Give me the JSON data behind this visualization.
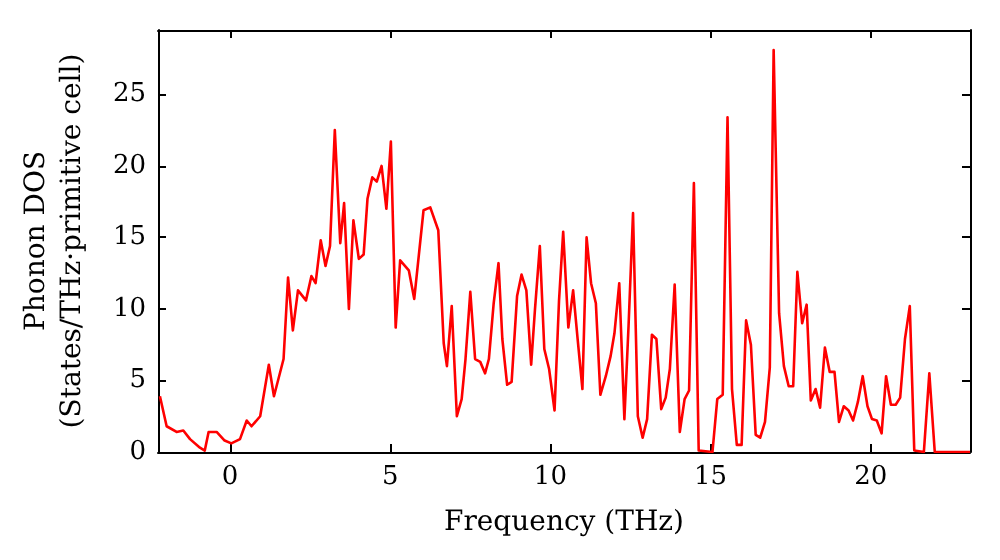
{
  "chart_data": {
    "type": "line",
    "xlabel": "Frequency (THz)",
    "ylabel": "Phonon DOS\n(States/THz·primitive cell)",
    "xlim": [
      -2.25,
      23.1
    ],
    "xticks": [
      0,
      5,
      10,
      15,
      20
    ],
    "ylim": [
      0,
      29.5
    ],
    "yticks": [
      0,
      5,
      10,
      15,
      20,
      25
    ],
    "grid": false,
    "marker": "none",
    "line_style": "solid",
    "series": [
      {
        "color": "#ff0000",
        "x": [
          -2.19,
          -1.98,
          -1.67,
          -1.46,
          -1.25,
          -0.94,
          -0.79,
          -0.67,
          -0.42,
          -0.17,
          0.04,
          0.31,
          0.52,
          0.67,
          0.94,
          1.21,
          1.37,
          1.67,
          1.81,
          1.96,
          2.12,
          2.37,
          2.54,
          2.67,
          2.83,
          2.98,
          3.12,
          3.27,
          3.44,
          3.56,
          3.71,
          3.85,
          4.02,
          4.17,
          4.29,
          4.44,
          4.58,
          4.73,
          4.88,
          5.02,
          5.17,
          5.31,
          5.58,
          5.75,
          6.04,
          6.25,
          6.5,
          6.67,
          6.77,
          6.92,
          7.08,
          7.23,
          7.35,
          7.5,
          7.65,
          7.81,
          7.96,
          8.08,
          8.23,
          8.38,
          8.5,
          8.65,
          8.79,
          8.96,
          9.1,
          9.25,
          9.4,
          9.52,
          9.67,
          9.81,
          9.96,
          10.13,
          10.27,
          10.4,
          10.56,
          10.71,
          10.85,
          11.0,
          11.13,
          11.27,
          11.42,
          11.56,
          11.73,
          11.88,
          12.0,
          12.15,
          12.31,
          12.44,
          12.58,
          12.73,
          12.88,
          13.02,
          13.17,
          13.31,
          13.46,
          13.6,
          13.73,
          13.88,
          14.04,
          14.19,
          14.33,
          14.48,
          14.63,
          15.06,
          15.21,
          15.38,
          15.53,
          15.67,
          15.82,
          15.97,
          16.11,
          16.26,
          16.41,
          16.55,
          16.7,
          16.85,
          16.97,
          17.14,
          17.29,
          17.44,
          17.58,
          17.71,
          17.86,
          18.0,
          18.13,
          18.28,
          18.42,
          18.57,
          18.72,
          18.87,
          19.01,
          19.16,
          19.31,
          19.45,
          19.6,
          19.75,
          19.9,
          20.04,
          20.19,
          20.34,
          20.48,
          20.63,
          20.78,
          20.92,
          21.07,
          21.22,
          21.36,
          21.66,
          21.83,
          22.0,
          23.1
        ],
        "values": [
          3.9,
          1.8,
          1.4,
          1.5,
          0.9,
          0.3,
          0.1,
          1.4,
          1.4,
          0.8,
          0.6,
          0.9,
          2.2,
          1.8,
          2.5,
          6.1,
          3.9,
          6.5,
          12.2,
          8.5,
          11.3,
          10.6,
          12.3,
          11.8,
          14.8,
          13.0,
          14.4,
          22.5,
          14.6,
          17.4,
          10.0,
          16.2,
          13.5,
          13.8,
          17.7,
          19.2,
          18.9,
          20.0,
          17.0,
          21.7,
          8.7,
          13.4,
          12.7,
          10.7,
          16.9,
          17.1,
          15.5,
          7.6,
          6.0,
          10.2,
          2.5,
          3.7,
          6.5,
          11.2,
          6.5,
          6.3,
          5.5,
          6.5,
          10.4,
          13.2,
          7.9,
          4.7,
          4.9,
          10.9,
          12.4,
          11.3,
          6.1,
          10.0,
          14.4,
          7.2,
          5.8,
          2.9,
          10.6,
          15.4,
          8.7,
          11.3,
          7.9,
          4.4,
          15.0,
          11.8,
          10.4,
          4.0,
          5.3,
          6.7,
          8.3,
          11.8,
          2.3,
          8.8,
          16.7,
          2.5,
          1.0,
          2.3,
          8.2,
          7.9,
          3.0,
          3.8,
          5.8,
          11.7,
          1.4,
          3.7,
          4.3,
          18.8,
          0.1,
          0,
          3.7,
          4.0,
          23.4,
          4.4,
          0.5,
          0.5,
          9.2,
          7.5,
          1.2,
          1.0,
          2.1,
          5.9,
          28.1,
          9.7,
          6.0,
          4.6,
          4.6,
          12.6,
          9.0,
          10.3,
          3.6,
          4.4,
          3.1,
          7.3,
          5.6,
          5.6,
          2.1,
          3.2,
          2.9,
          2.2,
          3.5,
          5.3,
          3.2,
          2.3,
          2.2,
          1.3,
          5.3,
          3.3,
          3.3,
          3.8,
          7.9,
          10.2,
          0.1,
          0,
          5.5,
          0,
          0
        ]
      }
    ]
  }
}
